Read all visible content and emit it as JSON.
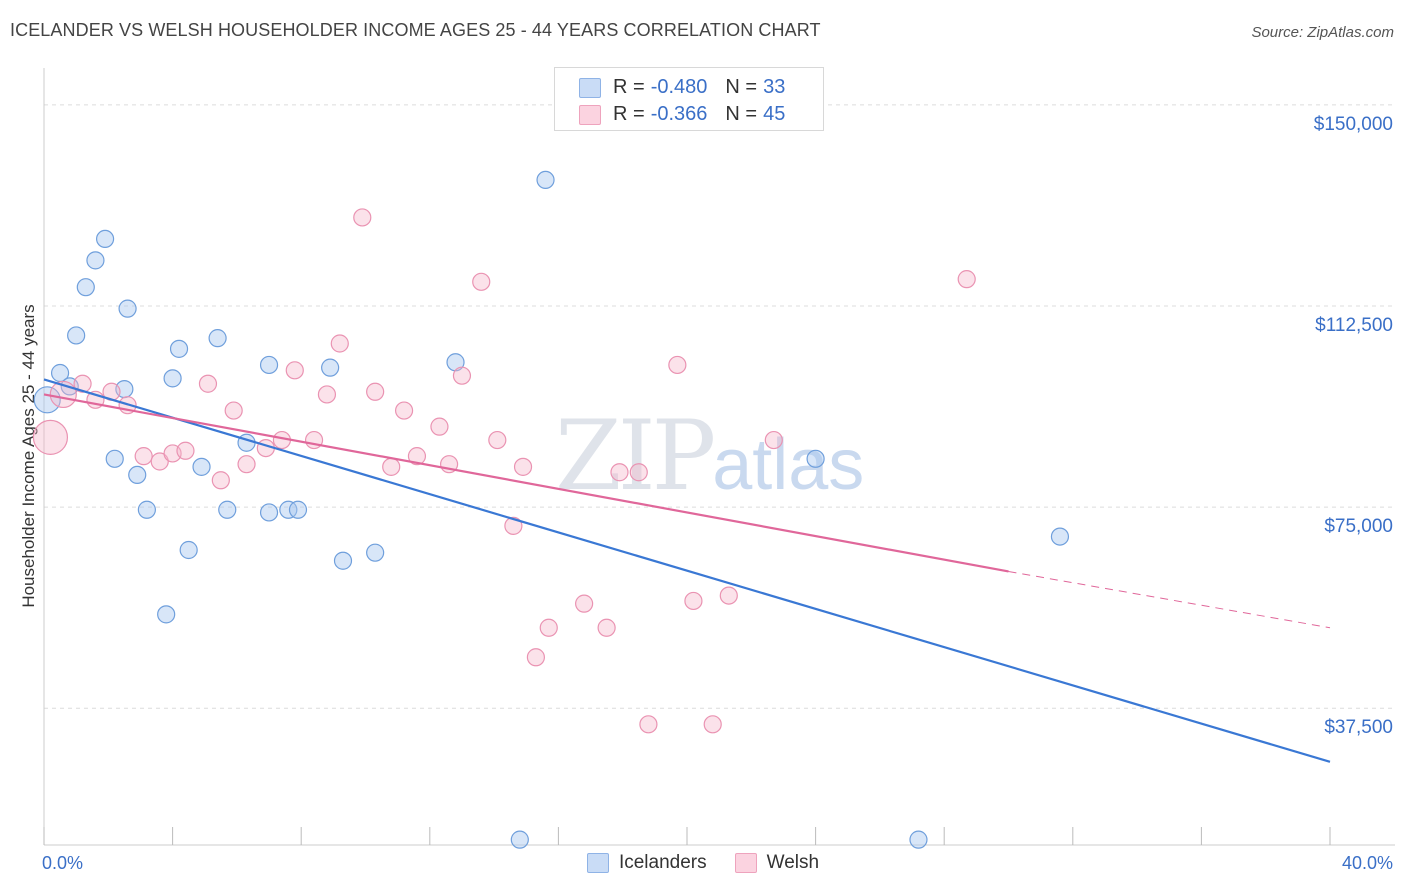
{
  "title": "ICELANDER VS WELSH HOUSEHOLDER INCOME AGES 25 - 44 YEARS CORRELATION CHART",
  "source": "Source: ZipAtlas.com",
  "watermark": {
    "zip": "ZIP",
    "atlas": "atlas"
  },
  "legend": {
    "rows": [
      {
        "r_label": "R =",
        "r_value": "-0.480",
        "n_label": "N =",
        "n_value": "33",
        "color": "#a8c8f0"
      },
      {
        "r_label": "R =",
        "r_value": "-0.366",
        "n_label": "N =",
        "n_value": "45",
        "color": "#f6b6cb"
      }
    ]
  },
  "chart_data": {
    "type": "scatter",
    "title": "ICELANDER VS WELSH HOUSEHOLDER INCOME AGES 25 - 44 YEARS CORRELATION CHART",
    "xlabel": "",
    "ylabel": "Householder Income Ages 25 - 44 years",
    "xlim": [
      0,
      40
    ],
    "ylim": [
      12000,
      155000
    ],
    "x_tick_labels": [
      "0.0%",
      "40.0%"
    ],
    "y_ticks": [
      37500,
      75000,
      112500,
      150000
    ],
    "y_tick_labels": [
      "$37,500",
      "$75,000",
      "$112,500",
      "$150,000"
    ],
    "grid": true,
    "colors": {
      "Icelanders": "#3a78d4",
      "Welsh": "#e0679a"
    },
    "series": [
      {
        "name": "Icelanders",
        "points": [
          [
            0.1,
            95000
          ],
          [
            0.5,
            100000
          ],
          [
            0.8,
            97500
          ],
          [
            1.3,
            116000
          ],
          [
            1.6,
            121000
          ],
          [
            1.9,
            125000
          ],
          [
            1.0,
            107000
          ],
          [
            2.6,
            112000
          ],
          [
            2.5,
            97000
          ],
          [
            2.2,
            84000
          ],
          [
            2.9,
            81000
          ],
          [
            3.2,
            74500
          ],
          [
            4.2,
            104500
          ],
          [
            4.0,
            99000
          ],
          [
            5.4,
            106500
          ],
          [
            4.9,
            82500
          ],
          [
            3.8,
            55000
          ],
          [
            4.5,
            67000
          ],
          [
            5.7,
            74500
          ],
          [
            7.0,
            101500
          ],
          [
            6.3,
            87000
          ],
          [
            7.0,
            74000
          ],
          [
            7.6,
            74500
          ],
          [
            7.9,
            74500
          ],
          [
            8.9,
            101000
          ],
          [
            9.3,
            65000
          ],
          [
            10.3,
            66500
          ],
          [
            12.8,
            102000
          ],
          [
            15.6,
            136000
          ],
          [
            14.8,
            13000
          ],
          [
            24.0,
            84000
          ],
          [
            27.2,
            13000
          ],
          [
            31.6,
            69500
          ]
        ]
      },
      {
        "name": "Welsh",
        "points": [
          [
            0.2,
            88000
          ],
          [
            0.6,
            96000
          ],
          [
            1.2,
            98000
          ],
          [
            1.6,
            95000
          ],
          [
            2.1,
            96500
          ],
          [
            2.6,
            94000
          ],
          [
            3.1,
            84500
          ],
          [
            3.6,
            83500
          ],
          [
            4.0,
            85000
          ],
          [
            4.4,
            85500
          ],
          [
            5.1,
            98000
          ],
          [
            5.5,
            80000
          ],
          [
            5.9,
            93000
          ],
          [
            6.3,
            83000
          ],
          [
            6.9,
            86000
          ],
          [
            7.4,
            87500
          ],
          [
            7.8,
            100500
          ],
          [
            8.4,
            87500
          ],
          [
            8.8,
            96000
          ],
          [
            9.2,
            105500
          ],
          [
            9.9,
            129000
          ],
          [
            10.3,
            96500
          ],
          [
            10.8,
            82500
          ],
          [
            11.2,
            93000
          ],
          [
            11.6,
            84500
          ],
          [
            12.3,
            90000
          ],
          [
            12.6,
            83000
          ],
          [
            13.0,
            99500
          ],
          [
            13.6,
            117000
          ],
          [
            14.1,
            87500
          ],
          [
            14.6,
            71500
          ],
          [
            14.9,
            82500
          ],
          [
            15.3,
            47000
          ],
          [
            15.7,
            52500
          ],
          [
            16.8,
            57000
          ],
          [
            17.5,
            52500
          ],
          [
            17.9,
            81500
          ],
          [
            18.5,
            81500
          ],
          [
            18.8,
            34500
          ],
          [
            19.7,
            101500
          ],
          [
            20.2,
            57500
          ],
          [
            20.8,
            34500
          ],
          [
            21.3,
            58500
          ],
          [
            22.7,
            87500
          ],
          [
            28.7,
            117500
          ]
        ]
      }
    ],
    "trend_lines": [
      {
        "series": "Icelanders",
        "from": [
          0,
          98800
        ],
        "to": [
          40,
          27500
        ],
        "style": "solid"
      },
      {
        "series": "Welsh",
        "from": [
          0,
          96000
        ],
        "to": [
          30,
          63000
        ],
        "style": "solid"
      },
      {
        "series": "Welsh",
        "from": [
          30,
          63000
        ],
        "to": [
          40,
          52500
        ],
        "style": "dashed"
      }
    ]
  },
  "bottom_legend": [
    {
      "label": "Icelanders",
      "color": "#a8c8f0"
    },
    {
      "label": "Welsh",
      "color": "#f6b6cb"
    }
  ]
}
